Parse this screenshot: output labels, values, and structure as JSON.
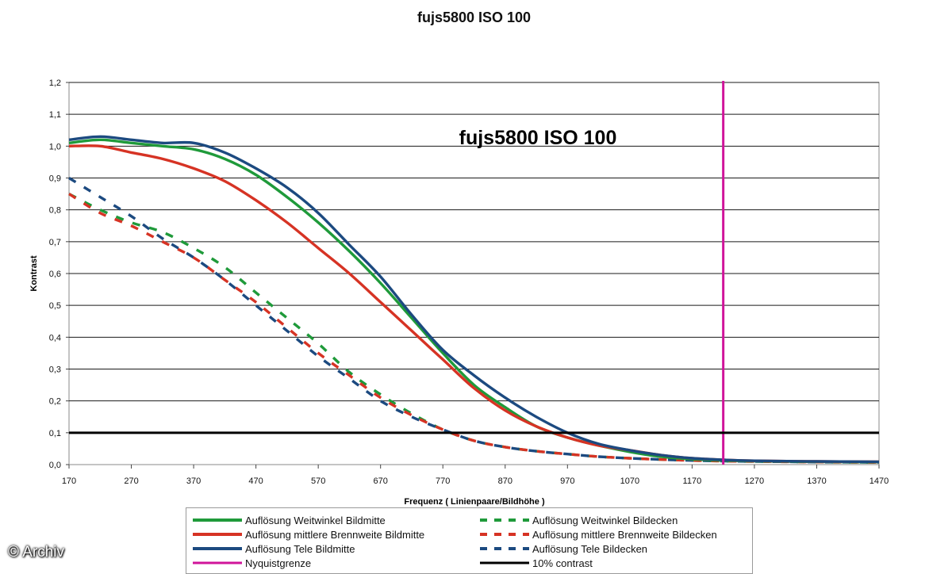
{
  "chart_data": {
    "type": "line",
    "title": "fujs5800 ISO 100",
    "inner_title": "fujs5800 ISO 100",
    "xlabel": "Frequenz ( Linienpaare/Bildhöhe )",
    "ylabel": "Kontrast",
    "xlim": [
      170,
      1470
    ],
    "ylim": [
      0,
      1.2
    ],
    "x_ticks": [
      "170",
      "270",
      "370",
      "470",
      "570",
      "670",
      "770",
      "870",
      "970",
      "1070",
      "1170",
      "1270",
      "1370",
      "1470"
    ],
    "y_ticks": [
      "0,0",
      "0,1",
      "0,2",
      "0,3",
      "0,4",
      "0,5",
      "0,6",
      "0,7",
      "0,8",
      "0,9",
      "1,0",
      "1,1",
      "1,2"
    ],
    "grid": "horizontal",
    "series": [
      {
        "name": "Auflösung Weitwinkel Bildmitte",
        "color": "#1f9a3a",
        "dash": false,
        "x": [
          170,
          220,
          270,
          320,
          370,
          420,
          470,
          520,
          570,
          620,
          670,
          720,
          770,
          820,
          870,
          920,
          970,
          1020,
          1070,
          1120,
          1170,
          1220,
          1270,
          1370,
          1470
        ],
        "y": [
          1.01,
          1.02,
          1.01,
          1.0,
          0.99,
          0.96,
          0.91,
          0.84,
          0.76,
          0.67,
          0.57,
          0.46,
          0.35,
          0.25,
          0.18,
          0.12,
          0.085,
          0.06,
          0.04,
          0.025,
          0.017,
          0.013,
          0.011,
          0.009,
          0.008
        ]
      },
      {
        "name": "Auflösung mittlere Brennweite Bildmitte",
        "color": "#d63324",
        "dash": false,
        "x": [
          170,
          220,
          270,
          320,
          370,
          420,
          470,
          520,
          570,
          620,
          670,
          720,
          770,
          820,
          870,
          920,
          970,
          1020,
          1070,
          1120,
          1170,
          1220,
          1270,
          1370,
          1470
        ],
        "y": [
          1.0,
          1.0,
          0.98,
          0.96,
          0.93,
          0.89,
          0.83,
          0.76,
          0.68,
          0.6,
          0.51,
          0.42,
          0.33,
          0.24,
          0.17,
          0.12,
          0.085,
          0.06,
          0.045,
          0.03,
          0.02,
          0.015,
          0.012,
          0.01,
          0.009
        ]
      },
      {
        "name": "Auflösung Tele Bildmitte",
        "color": "#1c4a80",
        "dash": false,
        "x": [
          170,
          220,
          270,
          320,
          370,
          420,
          470,
          520,
          570,
          620,
          670,
          720,
          770,
          820,
          870,
          920,
          970,
          1020,
          1070,
          1120,
          1170,
          1220,
          1270,
          1370,
          1470
        ],
        "y": [
          1.02,
          1.03,
          1.02,
          1.01,
          1.01,
          0.98,
          0.93,
          0.87,
          0.79,
          0.69,
          0.59,
          0.47,
          0.36,
          0.28,
          0.21,
          0.15,
          0.1,
          0.065,
          0.045,
          0.03,
          0.02,
          0.015,
          0.012,
          0.01,
          0.009
        ]
      },
      {
        "name": "Auflösung Weitwinkel Bildecken",
        "color": "#1f9a3a",
        "dash": true,
        "x": [
          170,
          220,
          270,
          320,
          370,
          420,
          470,
          520,
          570,
          620,
          670,
          720,
          770,
          820,
          870,
          920,
          970,
          1020,
          1070,
          1120,
          1170,
          1220,
          1270,
          1370,
          1470
        ],
        "y": [
          0.85,
          0.8,
          0.76,
          0.73,
          0.68,
          0.62,
          0.54,
          0.46,
          0.38,
          0.29,
          0.22,
          0.16,
          0.11,
          0.075,
          0.055,
          0.042,
          0.033,
          0.025,
          0.02,
          0.016,
          0.013,
          0.011,
          0.01,
          0.008,
          0.007
        ]
      },
      {
        "name": "Auflösung mittlere Brennweite Bildecken",
        "color": "#d63324",
        "dash": true,
        "x": [
          170,
          220,
          270,
          320,
          370,
          420,
          470,
          520,
          570,
          620,
          670,
          720,
          770,
          820,
          870,
          920,
          970,
          1020,
          1070,
          1120,
          1170,
          1220,
          1270,
          1370,
          1470
        ],
        "y": [
          0.85,
          0.79,
          0.75,
          0.7,
          0.65,
          0.58,
          0.51,
          0.43,
          0.35,
          0.28,
          0.21,
          0.155,
          0.11,
          0.075,
          0.055,
          0.042,
          0.033,
          0.025,
          0.02,
          0.016,
          0.013,
          0.011,
          0.01,
          0.008,
          0.007
        ]
      },
      {
        "name": "Auflösung Tele Bildecken",
        "color": "#1c4a80",
        "dash": true,
        "x": [
          170,
          220,
          270,
          320,
          370,
          420,
          470,
          520,
          570,
          620,
          670,
          720,
          770,
          820,
          870,
          920,
          970,
          1020,
          1070,
          1120,
          1170,
          1220,
          1270,
          1370,
          1470
        ],
        "y": [
          0.9,
          0.84,
          0.78,
          0.71,
          0.65,
          0.58,
          0.5,
          0.42,
          0.34,
          0.27,
          0.2,
          0.15,
          0.11,
          0.075,
          0.055,
          0.042,
          0.033,
          0.025,
          0.02,
          0.016,
          0.013,
          0.011,
          0.01,
          0.008,
          0.007
        ]
      }
    ],
    "reference_lines": [
      {
        "name": "Nyquistgrenze",
        "orientation": "vertical",
        "value": 1220,
        "color": "#d0149a"
      },
      {
        "name": "10% contrast",
        "orientation": "horizontal",
        "value": 0.1,
        "color": "#000000"
      }
    ],
    "legend": {
      "placement": "bottom",
      "columns": 2
    }
  },
  "watermark": "© Archiv"
}
